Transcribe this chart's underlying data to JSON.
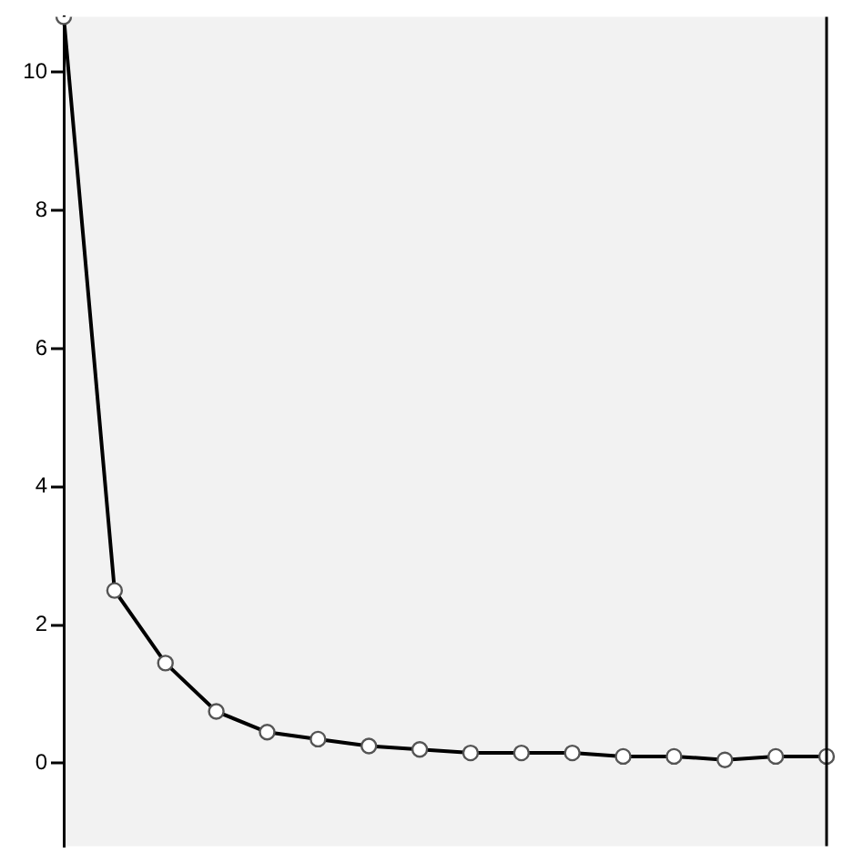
{
  "chart_data": {
    "type": "line",
    "categories": [
      null,
      null,
      null,
      null,
      null,
      null,
      null,
      null,
      null,
      null,
      null,
      null,
      null,
      null,
      null,
      null
    ],
    "series": [
      {
        "color": "#000000",
        "values": [
          10.8,
          2.5,
          1.45,
          0.75,
          0.45,
          0.35,
          0.25,
          0.2,
          0.15,
          0.15,
          0.15,
          0.1,
          0.1,
          0.05,
          0.1,
          0.1
        ]
      }
    ],
    "ylim": [
      -1.2,
      10.8
    ],
    "yticks": [
      0,
      2,
      4,
      6,
      8,
      10
    ],
    "tick_labels": "y",
    "grid": false,
    "legend": false,
    "marker": "circle",
    "line_style": "solid"
  }
}
